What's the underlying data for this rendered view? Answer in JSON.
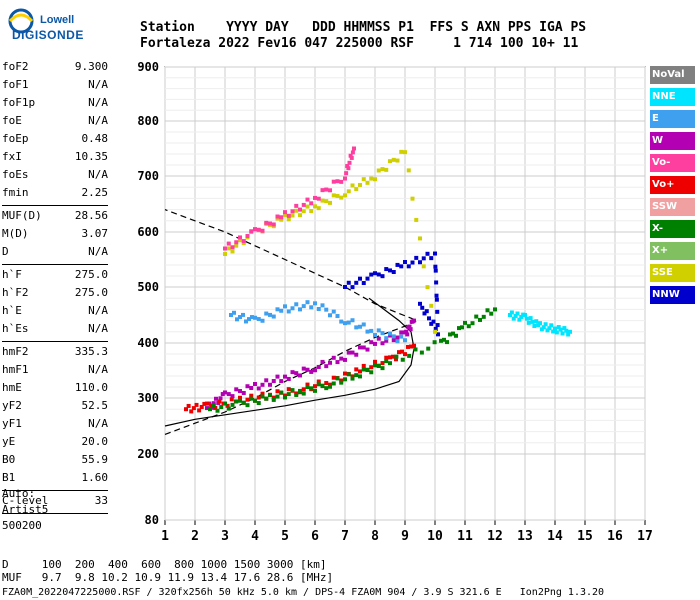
{
  "logo": {
    "line1": "Lowell",
    "line2": "DIGISONDE"
  },
  "header": {
    "line1": "Station    YYYY DAY   DDD HHMMSS P1  FFS S AXN PPS IGA PS",
    "line2": "Fortaleza 2022 Fev16 047 225000 RSF     1 714 100 10+ 11"
  },
  "params_group1": [
    {
      "k": "foF2",
      "v": "9.300"
    },
    {
      "k": "foF1",
      "v": "N/A"
    },
    {
      "k": "foF1p",
      "v": "N/A"
    },
    {
      "k": "foE",
      "v": "N/A"
    },
    {
      "k": "foEp",
      "v": "0.48"
    },
    {
      "k": "fxI",
      "v": "10.35"
    },
    {
      "k": "foEs",
      "v": "N/A"
    },
    {
      "k": "fmin",
      "v": "2.25"
    }
  ],
  "params_group2": [
    {
      "k": "MUF(D)",
      "v": "28.56"
    },
    {
      "k": "M(D)",
      "v": "3.07"
    },
    {
      "k": "D",
      "v": "N/A"
    }
  ],
  "params_group3": [
    {
      "k": "h`F",
      "v": "275.0"
    },
    {
      "k": "h`F2",
      "v": "275.0"
    },
    {
      "k": "h`E",
      "v": "N/A"
    },
    {
      "k": "h`Es",
      "v": "N/A"
    }
  ],
  "params_group4": [
    {
      "k": "hmF2",
      "v": "335.3"
    },
    {
      "k": "hmF1",
      "v": "N/A"
    },
    {
      "k": "hmE",
      "v": "110.0"
    },
    {
      "k": "yF2",
      "v": "52.5"
    },
    {
      "k": "yF1",
      "v": "N/A"
    },
    {
      "k": "yE",
      "v": "20.0"
    },
    {
      "k": "B0",
      "v": "55.9"
    },
    {
      "k": "B1",
      "v": "1.60"
    }
  ],
  "params_group5": [
    {
      "k": "C-level",
      "v": "33"
    }
  ],
  "auto": {
    "line1": "Auto:",
    "line2": "Artist5",
    "line3": "500200"
  },
  "legend": [
    {
      "label": "NoVal",
      "color": "#808080"
    },
    {
      "label": "NNE",
      "color": "#00e5ff"
    },
    {
      "label": "E",
      "color": "#3fa0f0"
    },
    {
      "label": "W",
      "color": "#b300b3"
    },
    {
      "label": "Vo-",
      "color": "#ff3fa0"
    },
    {
      "label": "Vo+",
      "color": "#ee0000"
    },
    {
      "label": "SSW",
      "color": "#f0a0a0"
    },
    {
      "label": "X-",
      "color": "#008000"
    },
    {
      "label": "X+",
      "color": "#80c060"
    },
    {
      "label": "SSE",
      "color": "#d0d000"
    },
    {
      "label": "NNW",
      "color": "#0000cc"
    }
  ],
  "footer": {
    "line1": "D     100  200  400  600  800 1000 1500 3000 [km]",
    "line2": "MUF   9.7  9.8 10.2 10.9 11.9 13.4 17.6 28.6 [MHz]",
    "line3": "FZA0M_2022047225000.RSF / 320fx256h 50 kHz 5.0 km / DPS-4 FZA0M 904 / 3.9 S 321.6 E   Ion2Png 1.3.20"
  },
  "chart_data": {
    "type": "scatter",
    "x_ticks": [
      "1",
      "2",
      "3",
      "4",
      "5",
      "6",
      "7",
      "8",
      "9",
      "10",
      "11",
      "12",
      "13",
      "14",
      "15",
      "16",
      "17"
    ],
    "y_ticks": [
      "80",
      "200",
      "300",
      "400",
      "500",
      "600",
      "700",
      "800",
      "900"
    ],
    "xlim": [
      1,
      17
    ],
    "ylim": [
      80,
      900
    ],
    "grid": true,
    "legend_position": "right",
    "series": [
      {
        "name": "W",
        "color": "#b300b3",
        "points": [
          [
            2.4,
            282
          ],
          [
            3,
            305
          ],
          [
            4,
            320
          ],
          [
            5,
            338
          ],
          [
            6,
            355
          ],
          [
            7,
            375
          ],
          [
            8,
            400
          ],
          [
            9,
            415
          ],
          [
            9.3,
            440
          ]
        ]
      },
      {
        "name": "Vo+",
        "color": "#ee0000",
        "points": [
          [
            1.7,
            280
          ],
          [
            2.4,
            285
          ],
          [
            3.5,
            295
          ],
          [
            4.5,
            305
          ],
          [
            5.5,
            315
          ],
          [
            6.5,
            330
          ],
          [
            7.5,
            350
          ],
          [
            8.5,
            370
          ],
          [
            9.3,
            395
          ]
        ]
      },
      {
        "name": "X-",
        "color": "#008000",
        "points": [
          [
            2.5,
            280
          ],
          [
            3.5,
            290
          ],
          [
            4.5,
            300
          ],
          [
            5.5,
            312
          ],
          [
            6.5,
            325
          ],
          [
            7.5,
            345
          ],
          [
            8.5,
            365
          ],
          [
            10.2,
            400
          ],
          [
            11,
            430
          ],
          [
            12,
            460
          ]
        ]
      },
      {
        "name": "E",
        "color": "#3fa0f0",
        "points": [
          [
            3.2,
            450
          ],
          [
            4,
            440
          ],
          [
            5,
            460
          ],
          [
            6,
            470
          ],
          [
            7,
            440
          ],
          [
            8,
            420
          ],
          [
            9,
            405
          ]
        ]
      },
      {
        "name": "NNE",
        "color": "#00e5ff",
        "points": [
          [
            12.5,
            450
          ],
          [
            13,
            445
          ],
          [
            13.5,
            430
          ],
          [
            14,
            425
          ],
          [
            14.5,
            420
          ]
        ]
      },
      {
        "name": "NNW",
        "color": "#0000cc",
        "points": [
          [
            7,
            500
          ],
          [
            8,
            520
          ],
          [
            9,
            540
          ],
          [
            10,
            560
          ],
          [
            10.1,
            420
          ],
          [
            9.5,
            470
          ]
        ]
      },
      {
        "name": "SSE",
        "color": "#d0d000",
        "points": [
          [
            3,
            560
          ],
          [
            4,
            600
          ],
          [
            5,
            625
          ],
          [
            6,
            645
          ],
          [
            7,
            670
          ],
          [
            8,
            700
          ],
          [
            9,
            745
          ],
          [
            10,
            420
          ]
        ]
      },
      {
        "name": "Vo-",
        "color": "#ff3fa0",
        "points": [
          [
            3,
            570
          ],
          [
            4,
            600
          ],
          [
            5,
            630
          ],
          [
            6,
            660
          ],
          [
            7,
            700
          ],
          [
            7.3,
            750
          ]
        ]
      }
    ],
    "profile_solid": [
      [
        1,
        250
      ],
      [
        2,
        262
      ],
      [
        3,
        270
      ],
      [
        4,
        278
      ],
      [
        5,
        286
      ],
      [
        6,
        296
      ],
      [
        7,
        305
      ],
      [
        8,
        316
      ],
      [
        8.8,
        330
      ],
      [
        9.2,
        360
      ],
      [
        9.3,
        390
      ],
      [
        9.2,
        420
      ],
      [
        8.8,
        440
      ],
      [
        8.3,
        460
      ],
      [
        7.8,
        480
      ]
    ],
    "profile_dashed": [
      [
        1,
        235
      ],
      [
        2,
        255
      ],
      [
        3,
        275
      ],
      [
        4,
        300
      ],
      [
        5,
        330
      ],
      [
        6,
        355
      ],
      [
        7,
        385
      ],
      [
        8,
        410
      ],
      [
        9,
        430
      ],
      [
        9.4,
        440
      ],
      [
        8,
        470
      ],
      [
        7,
        500
      ],
      [
        6,
        525
      ],
      [
        5,
        550
      ],
      [
        4,
        575
      ],
      [
        3,
        600
      ],
      [
        2,
        620
      ],
      [
        1,
        640
      ]
    ]
  }
}
